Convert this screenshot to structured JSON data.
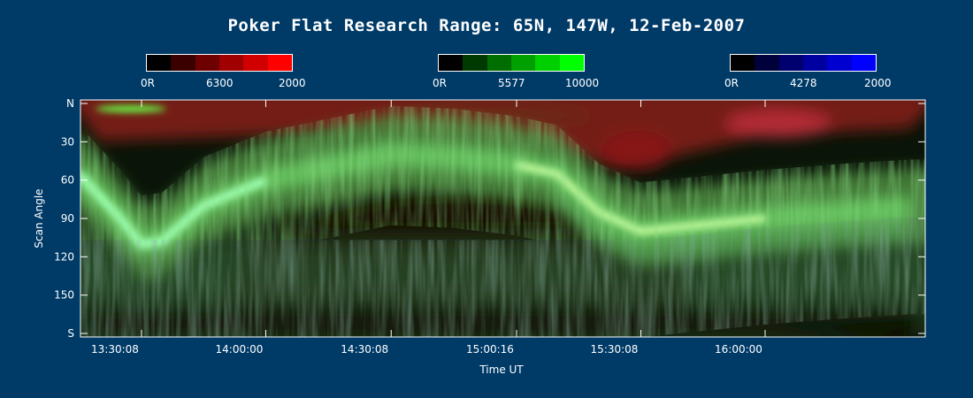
{
  "title": "Poker Flat Research Range: 65N, 147W, 12-Feb-2007",
  "colorbars": [
    {
      "min_label": "0R",
      "wavelength": "6300",
      "max_label": "2000",
      "colors": [
        "#000000",
        "#3a0000",
        "#6e0000",
        "#a00000",
        "#d00000",
        "#ff0000"
      ]
    },
    {
      "min_label": "0R",
      "wavelength": "5577",
      "max_label": "10000",
      "colors": [
        "#000000",
        "#003a00",
        "#006e00",
        "#00a000",
        "#00d000",
        "#00ff00"
      ]
    },
    {
      "min_label": "0R",
      "wavelength": "4278",
      "max_label": "2000",
      "colors": [
        "#000000",
        "#00003a",
        "#00006e",
        "#0000a0",
        "#0000d0",
        "#0000ff"
      ]
    }
  ],
  "chart_data": {
    "type": "heatmap",
    "title": "Poker Flat Research Range: 65N, 147W, 12-Feb-2007",
    "xlabel": "Time UT",
    "ylabel": "Scan Angle",
    "x_ticks": [
      "13:30:08",
      "14:00:00",
      "14:30:08",
      "15:00:16",
      "15:30:08",
      "16:00:00"
    ],
    "y_ticks": [
      "N",
      "30",
      "60",
      "90",
      "120",
      "150",
      "S"
    ],
    "y_tick_values": [
      0,
      30,
      60,
      90,
      120,
      150,
      180
    ],
    "ylim": [
      0,
      180
    ],
    "green_arc": [
      {
        "t": "13:15",
        "angle": 55
      },
      {
        "t": "13:25",
        "angle": 90
      },
      {
        "t": "13:30",
        "angle": 110
      },
      {
        "t": "13:35",
        "angle": 108
      },
      {
        "t": "13:45",
        "angle": 80
      },
      {
        "t": "14:00",
        "angle": 60
      },
      {
        "t": "14:15",
        "angle": 50
      },
      {
        "t": "14:30",
        "angle": 40
      },
      {
        "t": "14:45",
        "angle": 42
      },
      {
        "t": "15:00",
        "angle": 48
      },
      {
        "t": "15:10",
        "angle": 55
      },
      {
        "t": "15:20",
        "angle": 85
      },
      {
        "t": "15:30",
        "angle": 100
      },
      {
        "t": "15:45",
        "angle": 95
      },
      {
        "t": "16:00",
        "angle": 90
      },
      {
        "t": "16:20",
        "angle": 85
      },
      {
        "t": "16:35",
        "angle": 82
      }
    ],
    "red_glow": [
      {
        "t": "13:20",
        "angle": 20
      },
      {
        "t": "14:30",
        "angle": 12
      },
      {
        "t": "15:05",
        "angle": 20
      },
      {
        "t": "15:25",
        "angle": 42
      },
      {
        "t": "16:00",
        "angle": 15
      },
      {
        "t": "16:35",
        "angle": 10
      }
    ]
  }
}
